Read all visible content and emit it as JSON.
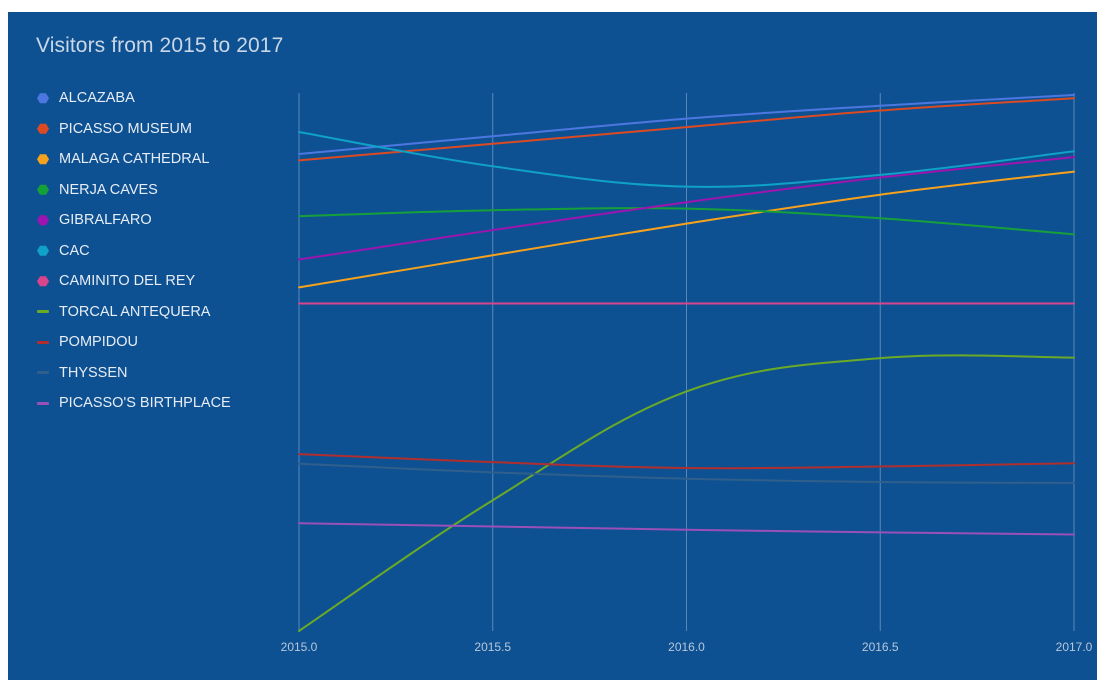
{
  "chart_data": {
    "type": "line",
    "title": "Visitors from 2015 to 2017",
    "xlabel": "",
    "ylabel": "",
    "x": [
      2015.0,
      2015.5,
      2016.0,
      2016.5,
      2017.0
    ],
    "x_ticks": [
      "2015.0",
      "2015.5",
      "2016.0",
      "2016.5",
      "2017.0"
    ],
    "xlim": [
      2015.0,
      2017.0
    ],
    "ylim": [
      0,
      100
    ],
    "y_ticks_shown": false,
    "grid": "vertical",
    "legend": "left",
    "series": [
      {
        "name": "ALCAZABA",
        "marker": "dot",
        "color": "#4d77e0",
        "values": [
          89.0,
          92.3,
          95.6,
          98.0,
          100.0
        ]
      },
      {
        "name": "PICASSO MUSEUM",
        "marker": "dot",
        "color": "#db4a22",
        "values": [
          87.8,
          90.9,
          94.0,
          97.1,
          99.4
        ]
      },
      {
        "name": "MALAGA CATHEDRAL",
        "marker": "dot",
        "color": "#f7a21c",
        "values": [
          64.1,
          70.1,
          76.0,
          81.4,
          85.7
        ]
      },
      {
        "name": "NERJA CAVES",
        "marker": "dot",
        "color": "#16a03a",
        "values": [
          77.4,
          78.5,
          78.8,
          77.0,
          74.0
        ]
      },
      {
        "name": "GIBRALFARO",
        "marker": "dot",
        "color": "#9c15b0",
        "values": [
          69.3,
          74.8,
          80.0,
          84.6,
          88.4
        ]
      },
      {
        "name": "CAC",
        "marker": "dot",
        "color": "#0fa1c8",
        "values": [
          93.1,
          86.7,
          82.9,
          85.1,
          89.5
        ]
      },
      {
        "name": "CAMINITO DEL REY",
        "marker": "dot",
        "color": "#d8458c",
        "values": [
          61.1,
          61.1,
          61.1,
          61.1,
          61.1
        ]
      },
      {
        "name": "TORCAL ANTEQUERA",
        "marker": "line",
        "color": "#6aaa26",
        "values": [
          0.0,
          24.4,
          44.7,
          50.9,
          51.0
        ]
      },
      {
        "name": "POMPIDOU",
        "marker": "line",
        "color": "#b02e2e",
        "values": [
          33.0,
          31.5,
          30.4,
          30.7,
          31.3
        ]
      },
      {
        "name": "THYSSEN",
        "marker": "line",
        "color": "#2f5f8c",
        "values": [
          31.2,
          29.6,
          28.4,
          27.8,
          27.6
        ]
      },
      {
        "name": "PICASSO'S BIRTHPLACE",
        "marker": "line",
        "color": "#9a50b8",
        "values": [
          20.1,
          19.5,
          18.9,
          18.4,
          18.0
        ]
      }
    ]
  }
}
